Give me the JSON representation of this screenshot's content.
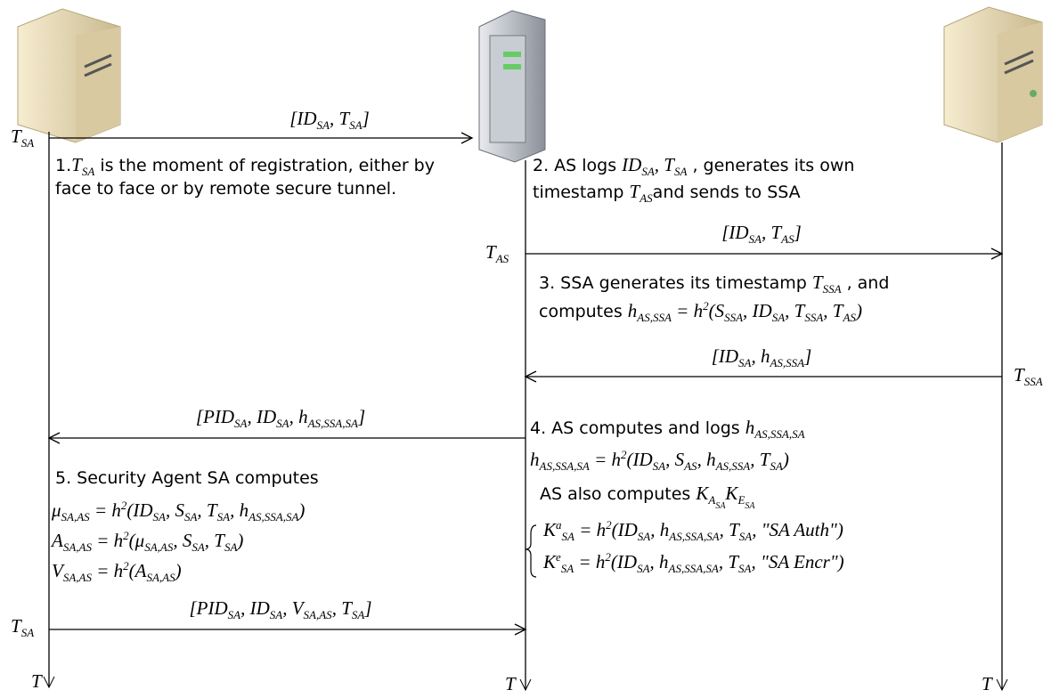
{
  "lifelines": [
    {
      "end_label": "T"
    },
    {
      "end_label": "T"
    },
    {
      "end_label": "T"
    }
  ],
  "messages": [
    {
      "label": [
        {
          "math": "[ID"
        },
        {
          "sub": "SA"
        },
        {
          "math": ", T"
        },
        {
          "sub": "SA"
        },
        {
          "math": "]"
        }
      ],
      "time_label": [
        {
          "math": "T"
        },
        {
          "sub": "SA"
        }
      ]
    },
    {
      "label": [
        {
          "math": "[ID"
        },
        {
          "sub": "SA"
        },
        {
          "math": ", T"
        },
        {
          "sub": "AS"
        },
        {
          "math": "]"
        }
      ],
      "time_label": [
        {
          "math": "T"
        },
        {
          "sub": "AS"
        }
      ]
    },
    {
      "label": [
        {
          "math": "[ID"
        },
        {
          "sub": "SA"
        },
        {
          "math": ", h"
        },
        {
          "sub": "AS,SSA"
        },
        {
          "math": "]"
        }
      ],
      "time_label": [
        {
          "math": "T"
        },
        {
          "sub": "SSA"
        }
      ]
    },
    {
      "label": [
        {
          "math": "[PID"
        },
        {
          "sub": "SA"
        },
        {
          "math": ", ID"
        },
        {
          "sub": "SA"
        },
        {
          "math": ", h"
        },
        {
          "sub": "AS,SSA,SA"
        },
        {
          "math": "]"
        }
      ]
    },
    {
      "label": [
        {
          "math": "[PID"
        },
        {
          "sub": "SA"
        },
        {
          "math": ", ID"
        },
        {
          "sub": "SA"
        },
        {
          "math": ", V"
        },
        {
          "sub": "SA,AS"
        },
        {
          "math": ", T"
        },
        {
          "sub": "SA"
        },
        {
          "math": "]"
        }
      ],
      "time_label": [
        {
          "math": "T"
        },
        {
          "sub": "SA"
        }
      ]
    }
  ],
  "notes": [
    {
      "lines": [
        [
          {
            "text": "1."
          },
          {
            "math": "T"
          },
          {
            "sub": "SA"
          },
          {
            "text": "  is the moment of registration, either by"
          }
        ],
        [
          {
            "text": "face to face or by remote secure tunnel."
          }
        ]
      ]
    },
    {
      "lines": [
        [
          {
            "text": "2. AS logs  "
          },
          {
            "math": "ID"
          },
          {
            "sub": "SA"
          },
          {
            "math": ", T"
          },
          {
            "sub": "SA"
          },
          {
            "text": " , generates its own"
          }
        ],
        [
          {
            "text": "timestamp  "
          },
          {
            "math": "T"
          },
          {
            "sub": "AS"
          },
          {
            "text": "and sends to SSA"
          }
        ]
      ]
    },
    {
      "lines": [
        [
          {
            "text": "3. SSA generates its timestamp  "
          },
          {
            "math": "T"
          },
          {
            "sub": "SSA"
          },
          {
            "text": " , and"
          }
        ],
        [
          {
            "text": "computes  "
          },
          {
            "math": "h"
          },
          {
            "sub": "AS,SSA"
          },
          {
            "math": " = h"
          },
          {
            "sup": "2"
          },
          {
            "math": "(S"
          },
          {
            "sub": "SSA"
          },
          {
            "math": ", ID"
          },
          {
            "sub": "SA"
          },
          {
            "math": ", T"
          },
          {
            "sub": "SSA"
          },
          {
            "math": ", T"
          },
          {
            "sub": "AS"
          },
          {
            "math": ")"
          }
        ]
      ]
    },
    {
      "lines": [
        [
          {
            "text": "4. AS computes and logs  "
          },
          {
            "math": "h"
          },
          {
            "sub": "AS,SSA,SA"
          }
        ],
        [
          {
            "math": "h"
          },
          {
            "sub": "AS,SSA,SA"
          },
          {
            "math": " = h"
          },
          {
            "sup": "2"
          },
          {
            "math": "(ID"
          },
          {
            "sub": "SA"
          },
          {
            "math": ", S"
          },
          {
            "sub": "AS"
          },
          {
            "math": ", h"
          },
          {
            "sub": "AS,SSA"
          },
          {
            "math": ", T"
          },
          {
            "sub": "SA"
          },
          {
            "math": ")"
          }
        ],
        [
          {
            "text": "AS  also computes  "
          },
          {
            "math": "K"
          },
          {
            "sub": "A"
          },
          {
            "subsub": "SA"
          },
          {
            "math": "K"
          },
          {
            "sub": "E"
          },
          {
            "subsub": "SA"
          }
        ],
        [
          {
            "math": "K"
          },
          {
            "sup": "a"
          },
          {
            "sub": "SA"
          },
          {
            "math": " = h"
          },
          {
            "sup": "2"
          },
          {
            "math": "(ID"
          },
          {
            "sub": "SA"
          },
          {
            "math": ", h"
          },
          {
            "sub": "AS,SSA,SA"
          },
          {
            "math": ", T"
          },
          {
            "sub": "SA"
          },
          {
            "math": ", \"SA Auth\")"
          }
        ],
        [
          {
            "math": "K"
          },
          {
            "sup": "e"
          },
          {
            "sub": "SA"
          },
          {
            "math": " = h"
          },
          {
            "sup": "2"
          },
          {
            "math": "(ID"
          },
          {
            "sub": "SA"
          },
          {
            "math": ", h"
          },
          {
            "sub": "AS,SSA,SA"
          },
          {
            "math": ", T"
          },
          {
            "sub": "SA"
          },
          {
            "math": ", \"SA Encr\")"
          }
        ]
      ]
    },
    {
      "lines": [
        [
          {
            "text": "5. Security Agent SA computes"
          }
        ],
        [
          {
            "math": "μ"
          },
          {
            "sub": "SA,AS"
          },
          {
            "math": " = h"
          },
          {
            "sup": "2"
          },
          {
            "math": "(ID"
          },
          {
            "sub": "SA"
          },
          {
            "math": ", S"
          },
          {
            "sub": "SA"
          },
          {
            "math": ", T"
          },
          {
            "sub": "SA"
          },
          {
            "math": ", h"
          },
          {
            "sub": "AS,SSA,SA"
          },
          {
            "math": ")"
          }
        ],
        [
          {
            "math": "A"
          },
          {
            "sub": "SA,AS"
          },
          {
            "math": " = h"
          },
          {
            "sup": "2"
          },
          {
            "math": "(μ"
          },
          {
            "sub": "SA,AS"
          },
          {
            "math": ", S"
          },
          {
            "sub": "SA"
          },
          {
            "math": ", T"
          },
          {
            "sub": "SA"
          },
          {
            "math": ")"
          }
        ],
        [
          {
            "math": "V"
          },
          {
            "sub": "SA,AS"
          },
          {
            "math": " = h"
          },
          {
            "sup": "2"
          },
          {
            "math": "(A"
          },
          {
            "sub": "SA,AS"
          },
          {
            "math": ")"
          }
        ]
      ]
    }
  ]
}
